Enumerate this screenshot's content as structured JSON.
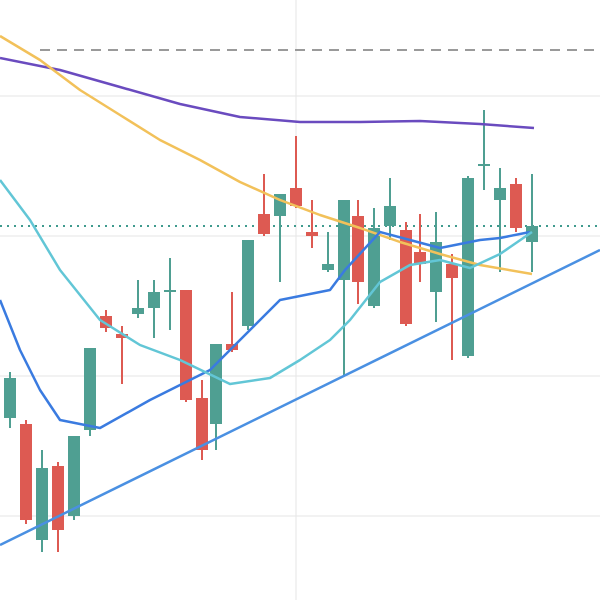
{
  "chart_data": {
    "type": "candlestick",
    "xlim": [
      0,
      600
    ],
    "ylim": [
      0,
      600
    ],
    "xticks": [
      296
    ],
    "yticks": [
      84,
      224,
      364,
      504
    ],
    "grid": true,
    "grid_color": "#e6e6e6",
    "up_color": "#4f9f92",
    "down_color": "#dd5a52",
    "x": [
      10,
      26,
      42,
      58,
      74,
      90,
      106,
      122,
      138,
      154,
      170,
      186,
      202,
      216,
      232,
      248,
      264,
      280,
      296,
      312,
      328,
      344,
      358,
      374,
      390,
      406,
      420,
      436,
      452,
      468,
      484,
      500,
      516,
      532
    ],
    "open": [
      182,
      176,
      60,
      134,
      84,
      170,
      284,
      266,
      286,
      292,
      308,
      310,
      202,
      176,
      256,
      274,
      386,
      384,
      412,
      368,
      330,
      320,
      384,
      294,
      374,
      370,
      348,
      308,
      336,
      244,
      434,
      400,
      416,
      358
    ],
    "high": [
      228,
      180,
      150,
      138,
      164,
      252,
      290,
      274,
      320,
      320,
      342,
      310,
      220,
      256,
      308,
      360,
      426,
      406,
      464,
      400,
      368,
      400,
      400,
      392,
      422,
      378,
      386,
      388,
      346,
      424,
      490,
      432,
      422,
      426
    ],
    "low": [
      172,
      76,
      48,
      48,
      80,
      164,
      268,
      216,
      282,
      262,
      270,
      198,
      140,
      150,
      248,
      270,
      364,
      318,
      392,
      352,
      328,
      224,
      296,
      292,
      360,
      274,
      318,
      278,
      240,
      242,
      410,
      328,
      368,
      328
    ],
    "close": [
      222,
      80,
      132,
      70,
      164,
      252,
      272,
      262,
      292,
      308,
      310,
      200,
      150,
      256,
      250,
      360,
      366,
      406,
      394,
      364,
      336,
      400,
      318,
      372,
      394,
      276,
      336,
      358,
      322,
      422,
      436,
      412,
      372,
      374
    ],
    "lines": [
      {
        "color": "#6a4bbf",
        "x": [
          0,
          60,
          120,
          180,
          240,
          300,
          360,
          420,
          480,
          534
        ],
        "values": [
          542,
          530,
          513,
          496,
          483,
          478,
          478,
          479,
          476,
          472
        ]
      },
      {
        "color": "#f2c15a",
        "x": [
          0,
          40,
          80,
          120,
          160,
          200,
          240,
          280,
          320,
          360,
          400,
          440,
          480,
          532
        ],
        "values": [
          564,
          540,
          510,
          485,
          460,
          440,
          418,
          400,
          385,
          372,
          358,
          346,
          335,
          326
        ]
      },
      {
        "color": "#3a7be0",
        "x": [
          0,
          20,
          40,
          60,
          100,
          150,
          190,
          210,
          240,
          280,
          330,
          345,
          380,
          410,
          440,
          480,
          500,
          530
        ],
        "values": [
          300,
          250,
          210,
          180,
          172,
          200,
          220,
          230,
          260,
          300,
          310,
          330,
          368,
          360,
          352,
          360,
          362,
          368
        ]
      },
      {
        "color": "#62c6d6",
        "x": [
          0,
          30,
          60,
          100,
          140,
          180,
          230,
          270,
          300,
          330,
          350,
          380,
          410,
          440,
          470,
          500,
          532
        ],
        "values": [
          420,
          380,
          330,
          280,
          255,
          240,
          216,
          222,
          240,
          260,
          280,
          318,
          335,
          340,
          332,
          346,
          368
        ]
      },
      {
        "color": "#4a90e2",
        "x": [
          0,
          600
        ],
        "values": [
          55,
          350
        ]
      }
    ],
    "hlines": [
      {
        "value": 550,
        "style": "dashed",
        "color": "#9a9a9a",
        "from": 40
      },
      {
        "value": 374,
        "style": "dotted",
        "color": "#3f9a8e",
        "from": 0
      }
    ]
  }
}
